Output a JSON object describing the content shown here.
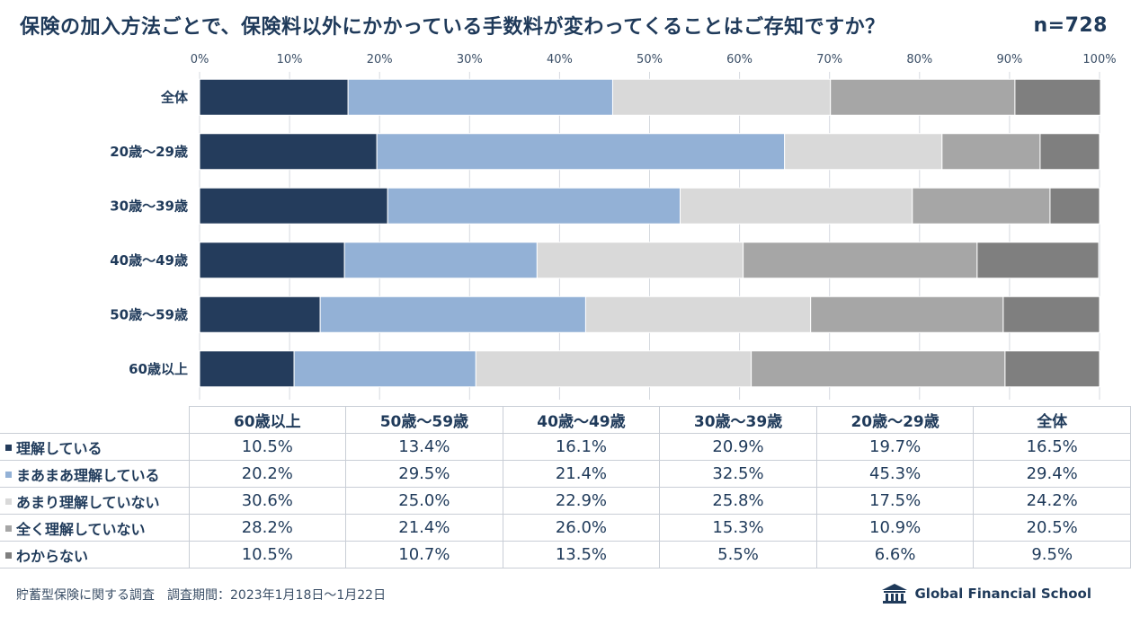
{
  "header": {
    "title": "保険の加入方法ごとで、保険料以外にかかっている手数料が変わってくることはご存知ですか？",
    "sample": "n=728"
  },
  "chart_data": {
    "type": "bar",
    "orientation": "horizontal",
    "stacked": true,
    "percent": true,
    "xlim": [
      0,
      100
    ],
    "xticks": [
      "0%",
      "10%",
      "20%",
      "30%",
      "40%",
      "50%",
      "60%",
      "70%",
      "80%",
      "90%",
      "100%"
    ],
    "categories": [
      "全体",
      "20歳〜29歳",
      "30歳〜39歳",
      "40歳〜49歳",
      "50歳〜59歳",
      "60歳以上"
    ],
    "series": [
      {
        "name": "理解している",
        "color": "#243c5c",
        "values": [
          16.5,
          19.7,
          20.9,
          16.1,
          13.4,
          10.5
        ]
      },
      {
        "name": "まあまあ理解している",
        "color": "#93b1d6",
        "values": [
          29.4,
          45.3,
          32.5,
          21.4,
          29.5,
          20.2
        ]
      },
      {
        "name": "あまり理解していない",
        "color": "#d9d9d9",
        "values": [
          24.2,
          17.5,
          25.8,
          22.9,
          25.0,
          30.6
        ]
      },
      {
        "name": "全く理解していない",
        "color": "#a6a6a6",
        "values": [
          20.5,
          10.9,
          15.3,
          26.0,
          21.4,
          28.2
        ]
      },
      {
        "name": "わからない",
        "color": "#7f7f7f",
        "values": [
          9.5,
          6.6,
          5.5,
          13.5,
          10.7,
          10.5
        ]
      }
    ],
    "legend": "table-below",
    "grid": true
  },
  "table": {
    "columns": [
      "60歳以上",
      "50歳〜59歳",
      "40歳〜49歳",
      "30歳〜39歳",
      "20歳〜29歳",
      "全体"
    ],
    "rows": [
      {
        "label": "理解している",
        "color": "#243c5c",
        "values": [
          "10.5%",
          "13.4%",
          "16.1%",
          "20.9%",
          "19.7%",
          "16.5%"
        ]
      },
      {
        "label": "まあまあ理解している",
        "color": "#93b1d6",
        "values": [
          "20.2%",
          "29.5%",
          "21.4%",
          "32.5%",
          "45.3%",
          "29.4%"
        ]
      },
      {
        "label": "あまり理解していない",
        "color": "#d9d9d9",
        "values": [
          "30.6%",
          "25.0%",
          "22.9%",
          "25.8%",
          "17.5%",
          "24.2%"
        ]
      },
      {
        "label": "全く理解していない",
        "color": "#a6a6a6",
        "values": [
          "28.2%",
          "21.4%",
          "26.0%",
          "15.3%",
          "10.9%",
          "20.5%"
        ]
      },
      {
        "label": "わからない",
        "color": "#7f7f7f",
        "values": [
          "10.5%",
          "10.7%",
          "13.5%",
          "5.5%",
          "6.6%",
          "9.5%"
        ]
      }
    ]
  },
  "footer": {
    "note": "貯蓄型保険に関する調査　調査期間：2023年1月18日〜1月22日",
    "logo_text": "Global Financial School",
    "logo_icon": "school-building-icon"
  }
}
